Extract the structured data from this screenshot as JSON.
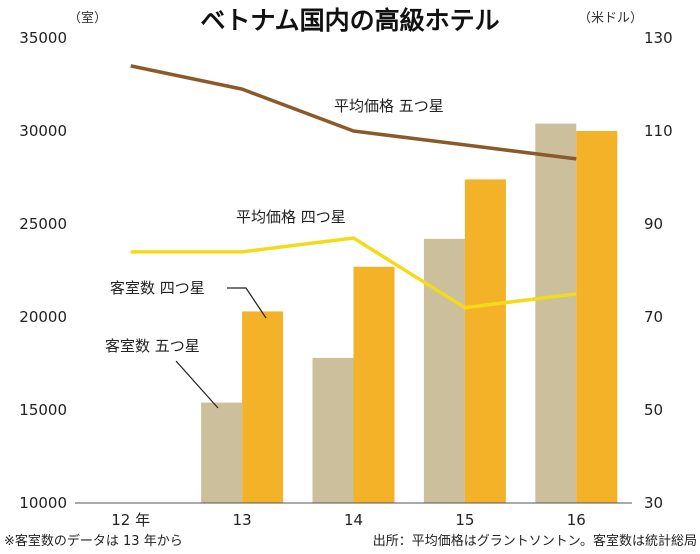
{
  "chart_data": {
    "type": "bar+line",
    "title": "ベトナム国内の高級ホテル",
    "left_axis": {
      "unit": "（室）",
      "range": [
        10000,
        35000
      ],
      "ticks": [
        "10000",
        "15000",
        "20000",
        "25000",
        "30000",
        "35000"
      ]
    },
    "right_axis": {
      "unit": "（米ドル）",
      "range": [
        30,
        130
      ],
      "ticks": [
        "30",
        "50",
        "70",
        "90",
        "110",
        "130"
      ]
    },
    "categories": [
      "12 年",
      "13",
      "14",
      "15",
      "16"
    ],
    "bar_series": [
      {
        "name": "客室数 五つ星",
        "color": "#cbbf9c",
        "values": [
          null,
          15400,
          17800,
          24200,
          30400
        ]
      },
      {
        "name": "客室数 四つ星",
        "color": "#f4b228",
        "values": [
          null,
          20300,
          22700,
          27400,
          30000
        ]
      }
    ],
    "line_series": [
      {
        "name": "平均価格 五つ星",
        "color": "#8b5a2b",
        "values": [
          124,
          119,
          110,
          107,
          104
        ]
      },
      {
        "name": "平均価格 四つ星",
        "color": "#f2dc1a",
        "values": [
          84,
          84,
          87,
          72,
          75
        ]
      }
    ],
    "annotations": {
      "price_five": "平均価格 五つ星",
      "price_four": "平均価格 四つ星",
      "rooms_four": "客室数 四つ星",
      "rooms_five": "客室数 五つ星"
    },
    "footnotes": {
      "left": "※客室数のデータは 13 年から",
      "right": "出所：平均価格はグラントソントン。客室数は統計総局"
    }
  }
}
